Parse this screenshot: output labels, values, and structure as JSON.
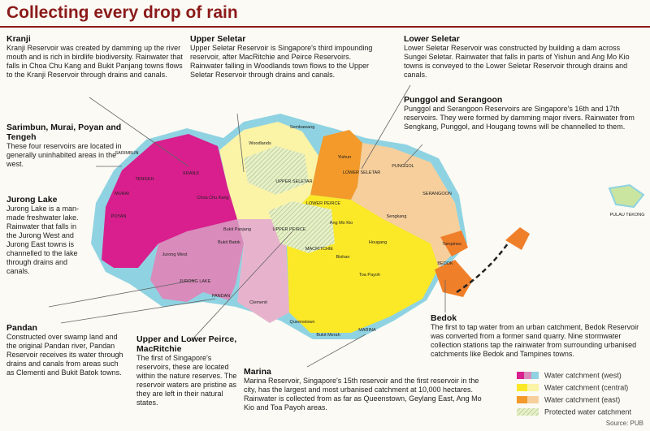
{
  "header": {
    "title": "Collecting every drop of rain"
  },
  "annotations": [
    {
      "heading": "Kranji",
      "body": "Kranji Reservoir was created by damming up the river mouth and is rich in birdlife biodiversity. Rainwater that falls in Choa Chu Kang and Bukit Panjang towns flows to the Kranji Reservoir through drains and canals."
    },
    {
      "heading": "Upper Seletar",
      "body": "Upper Seletar Reservoir is Singapore's third impounding reservoir, after MacRitchie and Peirce Reservoirs. Rainwater falling in Woodlands town flows to the Upper Seletar Reservoir through drains and canals."
    },
    {
      "heading": "Lower Seletar",
      "body": "Lower Seletar Reservoir was constructed by building a dam across Sungei Seletar. Rainwater that falls in parts of Yishun and Ang Mo Kio towns is conveyed to the Lower Seletar Reservoir through drains and canals."
    },
    {
      "heading": "Punggol and Serangoon",
      "body": "Punggol and Serangoon Reservoirs are Singapore's 16th and 17th reservoirs. They were formed by damming major rivers. Rainwater from Sengkang, Punggol, and Hougang towns will be channelled to them."
    },
    {
      "heading": "Sarimbun, Murai, Poyan and Tengeh",
      "body": "These four reservoirs are located in generally uninhabited areas in the west."
    },
    {
      "heading": "Jurong Lake",
      "body": "Jurong Lake is a man-made freshwater lake. Rainwater that falls in the Jurong West and Jurong East towns is channelled to the lake through drains and canals."
    },
    {
      "heading": "Pandan",
      "body": "Constructed over swamp land and the original Pandan river, Pandan Reservoir receives its water through drains and canals from areas such as Clementi and Bukit Batok towns."
    },
    {
      "heading": "Upper and Lower Peirce, MacRitchie",
      "body": "The first of Singapore's reservoirs, these are located within the nature reserves. The reservoir waters are pristine as they are left in their natural states."
    },
    {
      "heading": "Marina",
      "body": "Marina Reservoir, Singapore's 15th reservoir and the first reservoir in the city, has the largest and most urbanised catchment at 10,000 hectares. Rainwater is collected from as far as Queenstown, Geylang East, Ang Mo Kio and Toa Payoh areas."
    },
    {
      "heading": "Bedok",
      "body": "The first to tap water from an urban catchment, Bedok Reservoir was converted from a former sand quarry. Nine stormwater collection stations tap the rainwater from surrounding urbanised catchments like Bedok and Tampines towns."
    }
  ],
  "map": {
    "labels": [
      "KRANJI",
      "SARIMBUN",
      "TENGEH",
      "POYAN",
      "MURAI",
      "Jurong West",
      "JURONG LAKE",
      "PANDAN",
      "Clementi",
      "Bukit Batok",
      "Choa Chu Kang",
      "Bukit Panjang",
      "Woodlands",
      "Sembawang",
      "UPPER SELETAR",
      "Yishun",
      "LOWER SELETAR",
      "PUNGGOL",
      "SERANGOON",
      "Sengkang",
      "PULAU TEKONG",
      "Ang Mo Kio",
      "UPPER PEIRCE",
      "LOWER PEIRCE",
      "MACRITCHIE",
      "Bishan",
      "Toa Payoh",
      "Hougang",
      "Tampines",
      "BEDOK",
      "Queenstown",
      "Bukit Merah",
      "MARINA"
    ]
  },
  "legend": {
    "items": [
      "Water catchment (west)",
      "Water catchment (central)",
      "Water catchment (east)",
      "Protected water catchment"
    ]
  },
  "source": "Source: PUB"
}
